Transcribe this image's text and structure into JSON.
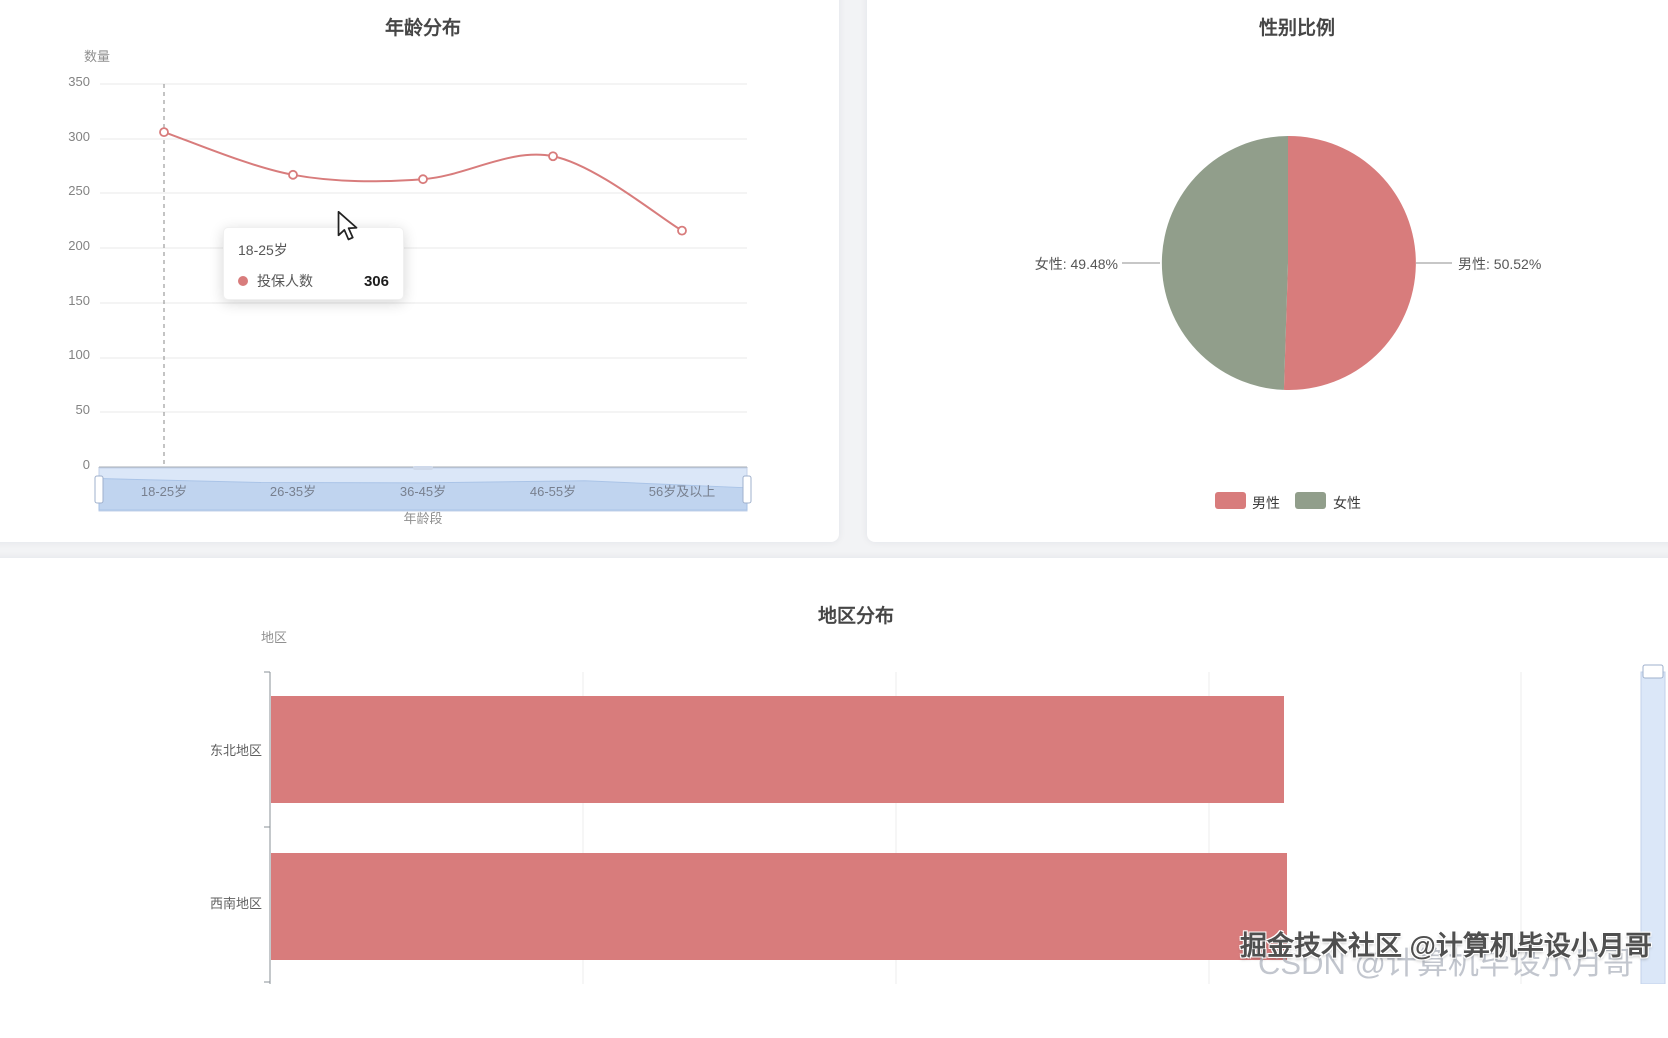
{
  "page": {
    "background": "#f2f3f5",
    "watermark_line1": "掘金技术社区 @计算机毕设小月哥",
    "watermark_line2": "CSDN @计算机毕设小月哥"
  },
  "palette": {
    "red": "#d87c7c",
    "green": "#919e8b",
    "datazoom_fill": "#dbe7f8",
    "datazoom_border": "#c3d2ea",
    "datazoom_shadow_fill": "#bad0ee",
    "datazoom_shadow_line": "#9fbce4",
    "handle_fill": "#ffffff",
    "handle_border": "#9fb0cc"
  },
  "chart_data": [
    {
      "type": "line",
      "title": "年龄分布",
      "y_axis_name": "数量",
      "x_axis_name": "年龄段",
      "categories": [
        "18-25岁",
        "26-35岁",
        "36-45岁",
        "46-55岁",
        "56岁及以上"
      ],
      "series": [
        {
          "name": "投保人数",
          "color": "#d87c7c",
          "values": [
            306,
            267,
            263,
            284,
            216
          ]
        }
      ],
      "ylim": [
        0,
        350
      ],
      "y_ticks": [
        0,
        50,
        100,
        150,
        200,
        250,
        300,
        350
      ],
      "grid": true,
      "smooth": true,
      "datazoom": "slider-bottom",
      "tooltip": {
        "category": "18-25岁",
        "series_name": "投保人数",
        "value": 306
      }
    },
    {
      "type": "pie",
      "title": "性别比例",
      "slices": [
        {
          "label": "男性",
          "value": 50.52,
          "color": "#d87c7c",
          "callout": "男性: 50.52%"
        },
        {
          "label": "女性",
          "value": 49.48,
          "color": "#919e8b",
          "callout": "女性: 49.48%"
        }
      ],
      "legend": {
        "position": "bottom",
        "items": [
          "男性",
          "女性"
        ]
      }
    },
    {
      "type": "bar",
      "orientation": "horizontal",
      "title": "地区分布",
      "y_axis_name": "地区",
      "categories": [
        "东北地区",
        "西南地区"
      ],
      "values": [
        324,
        325
      ],
      "color": "#d87c7c",
      "grid": true,
      "datazoom": "slider-vertical-right"
    }
  ]
}
